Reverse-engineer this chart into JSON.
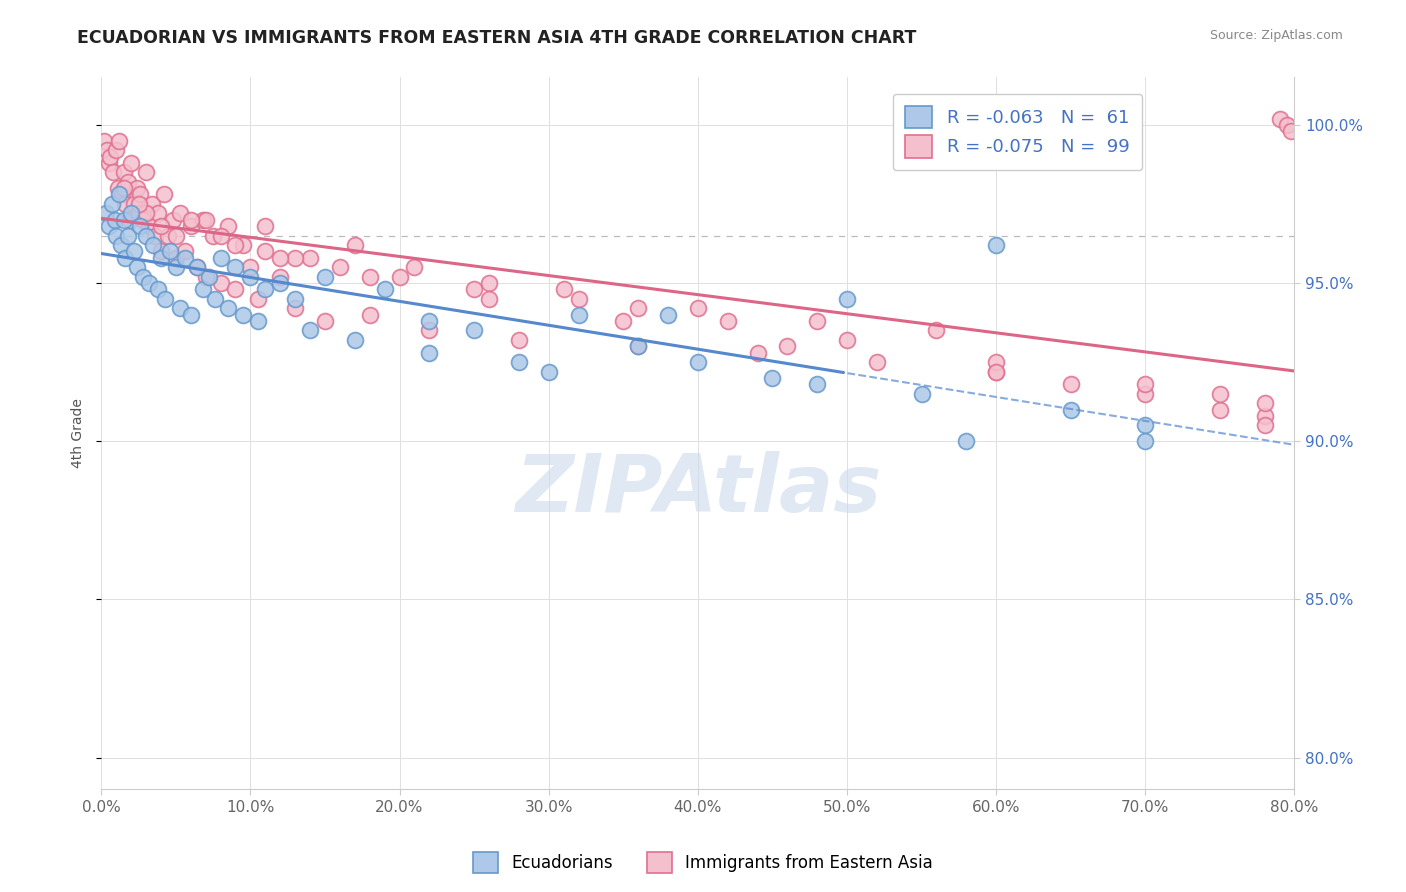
{
  "title": "ECUADORIAN VS IMMIGRANTS FROM EASTERN ASIA 4TH GRADE CORRELATION CHART",
  "source": "Source: ZipAtlas.com",
  "ylabel": "4th Grade",
  "x_tick_labels": [
    "0.0%",
    "10.0%",
    "20.0%",
    "30.0%",
    "40.0%",
    "50.0%",
    "60.0%",
    "70.0%",
    "80.0%"
  ],
  "x_tick_values": [
    0,
    10,
    20,
    30,
    40,
    50,
    60,
    70,
    80
  ],
  "y_tick_labels": [
    "80.0%",
    "85.0%",
    "90.0%",
    "95.0%",
    "100.0%"
  ],
  "y_tick_values": [
    80,
    85,
    90,
    95,
    100
  ],
  "xlim": [
    0,
    80
  ],
  "ylim": [
    79,
    101.5
  ],
  "blue_color": "#adc8e8",
  "blue_edge_color": "#6699cc",
  "pink_color": "#f4c0ce",
  "pink_edge_color": "#e07090",
  "trend_blue": "#5588cc",
  "trend_pink": "#dd6688",
  "watermark": "ZIPAtlas",
  "watermark_color": "#ccdaec",
  "blue_scatter_x": [
    0.3,
    0.5,
    0.7,
    0.9,
    1.0,
    1.2,
    1.3,
    1.5,
    1.6,
    1.8,
    2.0,
    2.2,
    2.4,
    2.6,
    2.8,
    3.0,
    3.2,
    3.5,
    3.8,
    4.0,
    4.3,
    4.6,
    5.0,
    5.3,
    5.6,
    6.0,
    6.4,
    6.8,
    7.2,
    7.6,
    8.0,
    8.5,
    9.0,
    9.5,
    10.0,
    10.5,
    11.0,
    12.0,
    13.0,
    14.0,
    15.0,
    17.0,
    19.0,
    22.0,
    25.0,
    28.0,
    32.0,
    36.0,
    40.0,
    45.0,
    50.0,
    55.0,
    60.0,
    65.0,
    70.0,
    22.0,
    30.0,
    38.0,
    48.0,
    58.0,
    70.0
  ],
  "blue_scatter_y": [
    97.2,
    96.8,
    97.5,
    97.0,
    96.5,
    97.8,
    96.2,
    97.0,
    95.8,
    96.5,
    97.2,
    96.0,
    95.5,
    96.8,
    95.2,
    96.5,
    95.0,
    96.2,
    94.8,
    95.8,
    94.5,
    96.0,
    95.5,
    94.2,
    95.8,
    94.0,
    95.5,
    94.8,
    95.2,
    94.5,
    95.8,
    94.2,
    95.5,
    94.0,
    95.2,
    93.8,
    94.8,
    95.0,
    94.5,
    93.5,
    95.2,
    93.2,
    94.8,
    92.8,
    93.5,
    92.5,
    94.0,
    93.0,
    92.5,
    92.0,
    94.5,
    91.5,
    96.2,
    91.0,
    90.5,
    93.8,
    92.2,
    94.0,
    91.8,
    90.0,
    90.0
  ],
  "pink_scatter_x": [
    0.2,
    0.4,
    0.5,
    0.6,
    0.8,
    1.0,
    1.1,
    1.2,
    1.4,
    1.5,
    1.6,
    1.8,
    1.9,
    2.0,
    2.2,
    2.4,
    2.5,
    2.6,
    2.8,
    3.0,
    3.2,
    3.4,
    3.6,
    3.8,
    4.0,
    4.2,
    4.5,
    4.8,
    5.0,
    5.3,
    5.6,
    6.0,
    6.4,
    6.8,
    7.0,
    7.5,
    8.0,
    8.5,
    9.0,
    9.5,
    10.0,
    10.5,
    11.0,
    12.0,
    13.0,
    14.0,
    15.0,
    16.0,
    18.0,
    20.0,
    22.0,
    25.0,
    28.0,
    32.0,
    36.0,
    40.0,
    44.0,
    48.0,
    52.0,
    56.0,
    60.0,
    65.0,
    70.0,
    75.0,
    78.0,
    3.0,
    5.0,
    7.0,
    9.0,
    11.0,
    13.0,
    17.0,
    21.0,
    26.0,
    31.0,
    36.0,
    42.0,
    50.0,
    60.0,
    70.0,
    78.0,
    1.5,
    2.5,
    4.0,
    6.0,
    8.0,
    12.0,
    18.0,
    26.0,
    35.0,
    46.0,
    60.0,
    75.0,
    78.0,
    79.0,
    79.5,
    79.8
  ],
  "pink_scatter_y": [
    99.5,
    99.2,
    98.8,
    99.0,
    98.5,
    99.2,
    98.0,
    99.5,
    97.8,
    98.5,
    97.5,
    98.2,
    97.0,
    98.8,
    97.5,
    98.0,
    97.2,
    97.8,
    97.0,
    98.5,
    96.8,
    97.5,
    96.5,
    97.2,
    96.0,
    97.8,
    96.5,
    97.0,
    95.8,
    97.2,
    96.0,
    96.8,
    95.5,
    97.0,
    95.2,
    96.5,
    95.0,
    96.8,
    94.8,
    96.2,
    95.5,
    94.5,
    96.0,
    95.2,
    94.2,
    95.8,
    93.8,
    95.5,
    94.0,
    95.2,
    93.5,
    94.8,
    93.2,
    94.5,
    93.0,
    94.2,
    92.8,
    93.8,
    92.5,
    93.5,
    92.2,
    91.8,
    91.5,
    91.0,
    90.8,
    97.2,
    96.5,
    97.0,
    96.2,
    96.8,
    95.8,
    96.2,
    95.5,
    95.0,
    94.8,
    94.2,
    93.8,
    93.2,
    92.5,
    91.8,
    91.2,
    98.0,
    97.5,
    96.8,
    97.0,
    96.5,
    95.8,
    95.2,
    94.5,
    93.8,
    93.0,
    92.2,
    91.5,
    90.5,
    100.2,
    100.0,
    99.8
  ]
}
